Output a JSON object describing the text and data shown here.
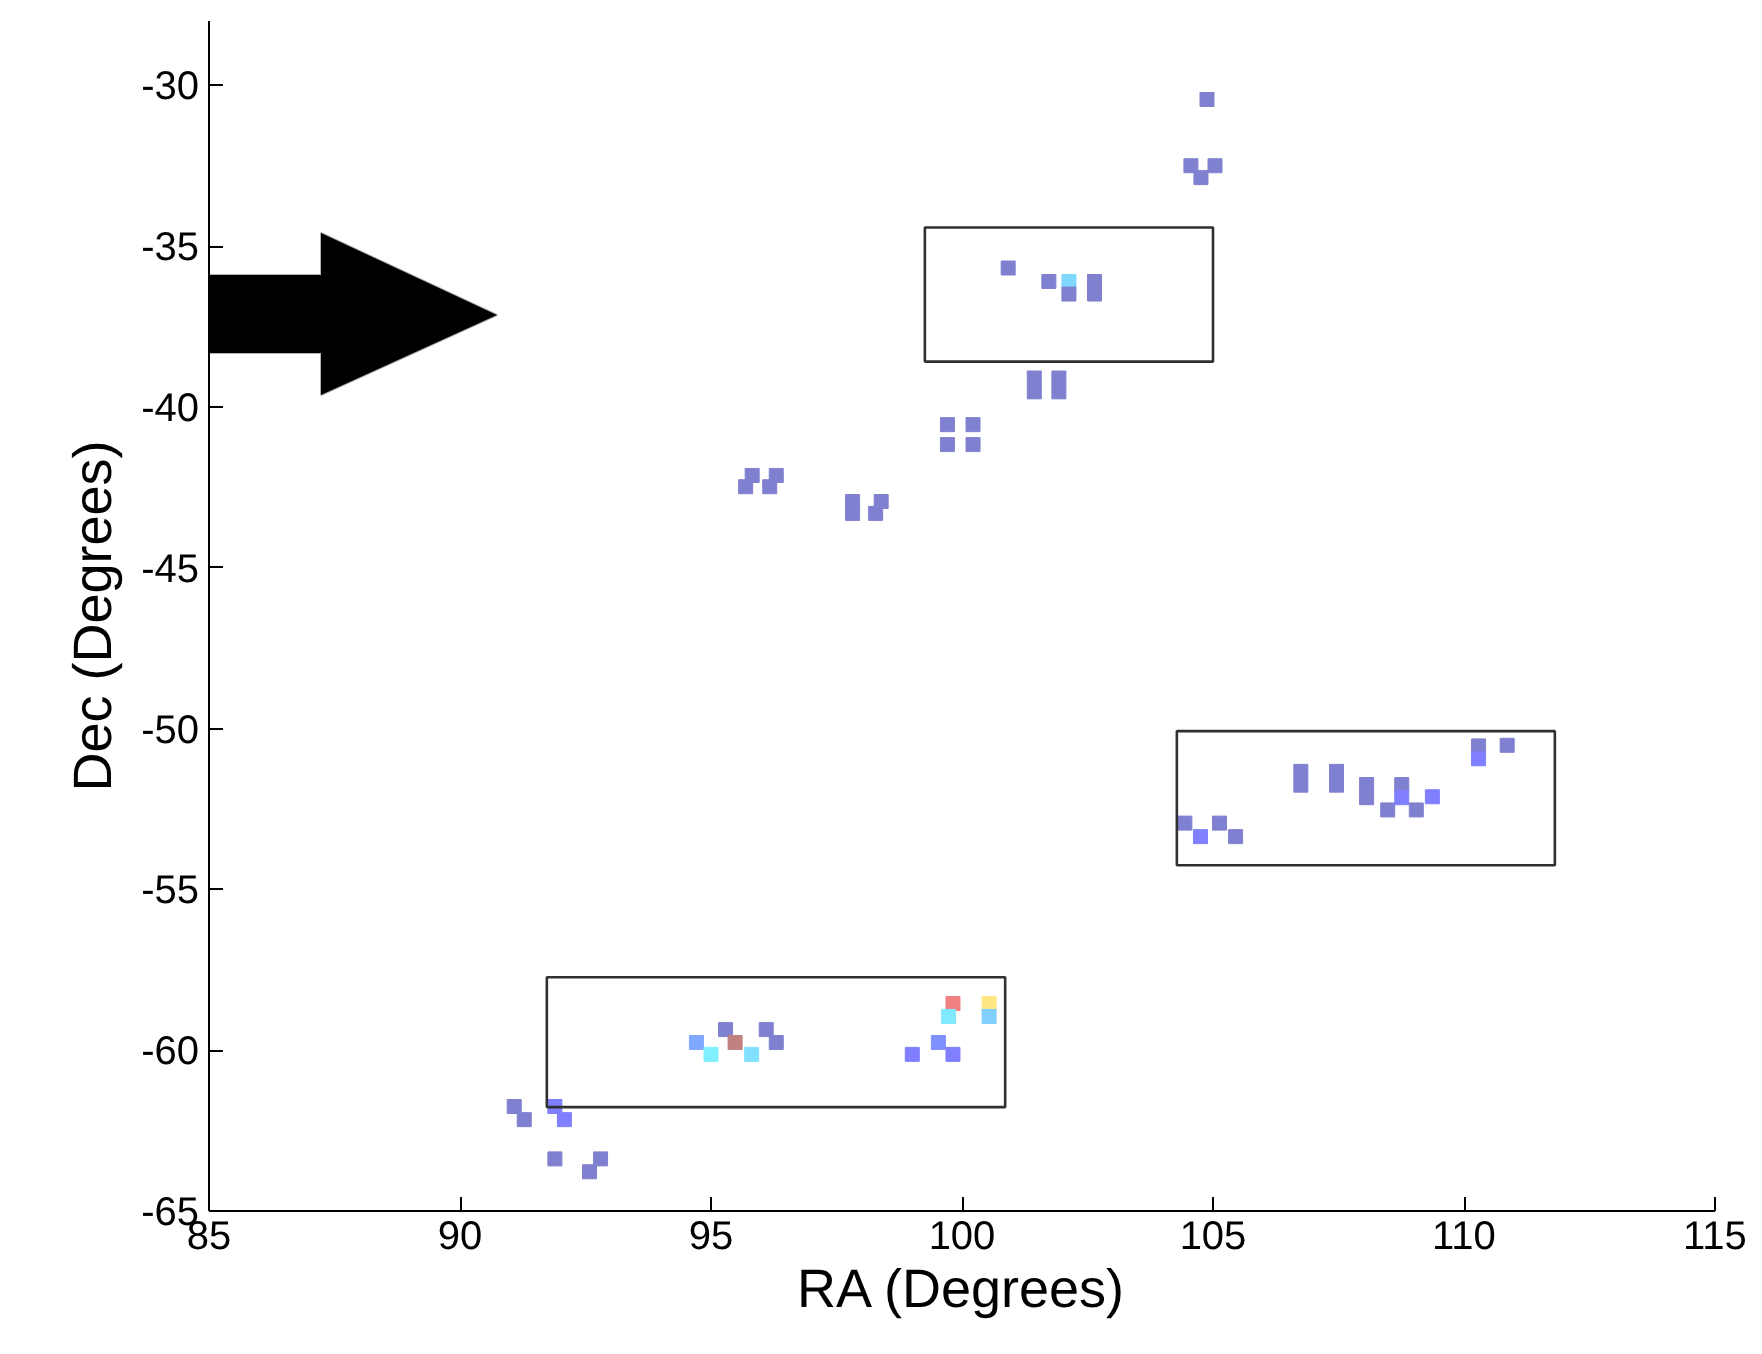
{
  "chart_data": {
    "type": "scatter",
    "xlabel": "RA (Degrees)",
    "ylabel": "Dec (Degrees)",
    "xlim": [
      85,
      115
    ],
    "ylim": [
      -65,
      -28
    ],
    "xticks": [
      85,
      90,
      95,
      100,
      105,
      110,
      115
    ],
    "yticks": [
      -65,
      -60,
      -55,
      -50,
      -45,
      -40,
      -35,
      -30
    ],
    "grid": false,
    "marker": "square",
    "x": [
      104.88,
      104.56,
      105.04,
      104.76,
      100.92,
      101.73,
      102.13,
      102.13,
      102.64,
      102.64,
      101.44,
      101.44,
      101.93,
      101.93,
      99.71,
      99.71,
      100.22,
      100.22,
      95.82,
      95.69,
      96.3,
      96.17,
      97.82,
      97.82,
      98.39,
      98.28,
      104.44,
      104.75,
      105.13,
      105.45,
      106.75,
      106.75,
      107.46,
      107.46,
      108.06,
      108.06,
      108.48,
      108.76,
      108.76,
      109.05,
      109.37,
      110.29,
      110.29,
      110.86,
      95.29,
      94.71,
      95.0,
      95.48,
      96.1,
      96.3,
      95.81,
      99.82,
      99.73,
      100.54,
      100.54,
      99.01,
      99.53,
      99.82,
      91.08,
      91.28,
      91.89,
      92.08,
      91.89,
      92.8,
      92.58
    ],
    "values": [
      -30.44,
      -32.5,
      -32.5,
      -32.87,
      -35.68,
      -36.1,
      -36.1,
      -36.49,
      -36.1,
      -36.49,
      -39.1,
      -39.53,
      -39.1,
      -39.53,
      -40.55,
      -41.17,
      -40.55,
      -41.17,
      -42.13,
      -42.48,
      -42.13,
      -42.48,
      -42.94,
      -43.31,
      -42.94,
      -43.31,
      -52.94,
      -53.36,
      -52.94,
      -53.36,
      -51.33,
      -51.76,
      -51.33,
      -51.76,
      -51.74,
      -52.15,
      -52.53,
      -51.74,
      -52.15,
      -52.53,
      -52.12,
      -50.54,
      -50.94,
      -50.52,
      -59.36,
      -59.76,
      -60.13,
      -59.76,
      -59.36,
      -59.76,
      -60.13,
      -58.55,
      -58.95,
      -58.55,
      -58.95,
      -60.13,
      -59.76,
      -60.13,
      -61.75,
      -62.16,
      -61.75,
      -62.16,
      -63.38,
      -63.38,
      -63.78
    ],
    "colors": [
      "#8080d0",
      "#8080d0",
      "#8080d0",
      "#8080d0",
      "#8080d0",
      "#8080d0",
      "#80d8ff",
      "#8080d0",
      "#8080d0",
      "#8080d0",
      "#8080d0",
      "#8080d0",
      "#8080d0",
      "#8080d0",
      "#8080d0",
      "#8080d0",
      "#8080d0",
      "#8080d0",
      "#8080d0",
      "#8080d0",
      "#8080d0",
      "#8080d0",
      "#8080d0",
      "#8080d0",
      "#8080d0",
      "#8080d0",
      "#8080d0",
      "#7f7fff",
      "#8080d0",
      "#8080d0",
      "#8080d0",
      "#8080d0",
      "#8080d0",
      "#8080d0",
      "#8080d0",
      "#8080d0",
      "#8080d0",
      "#8080d0",
      "#7f7fff",
      "#8080d0",
      "#7f7fff",
      "#8080d0",
      "#7f7fff",
      "#8080d0",
      "#8080d0",
      "#80a8ff",
      "#80f0ff",
      "#c08080",
      "#8080d0",
      "#8080d0",
      "#80e0ff",
      "#f08080",
      "#80e8ff",
      "#ffe680",
      "#80d0ff",
      "#7f7fff",
      "#8090ff",
      "#7f7fff",
      "#8080d0",
      "#8080d0",
      "#7f7fff",
      "#7f7fff",
      "#8080d0",
      "#8080d0",
      "#8080d0"
    ]
  }
}
